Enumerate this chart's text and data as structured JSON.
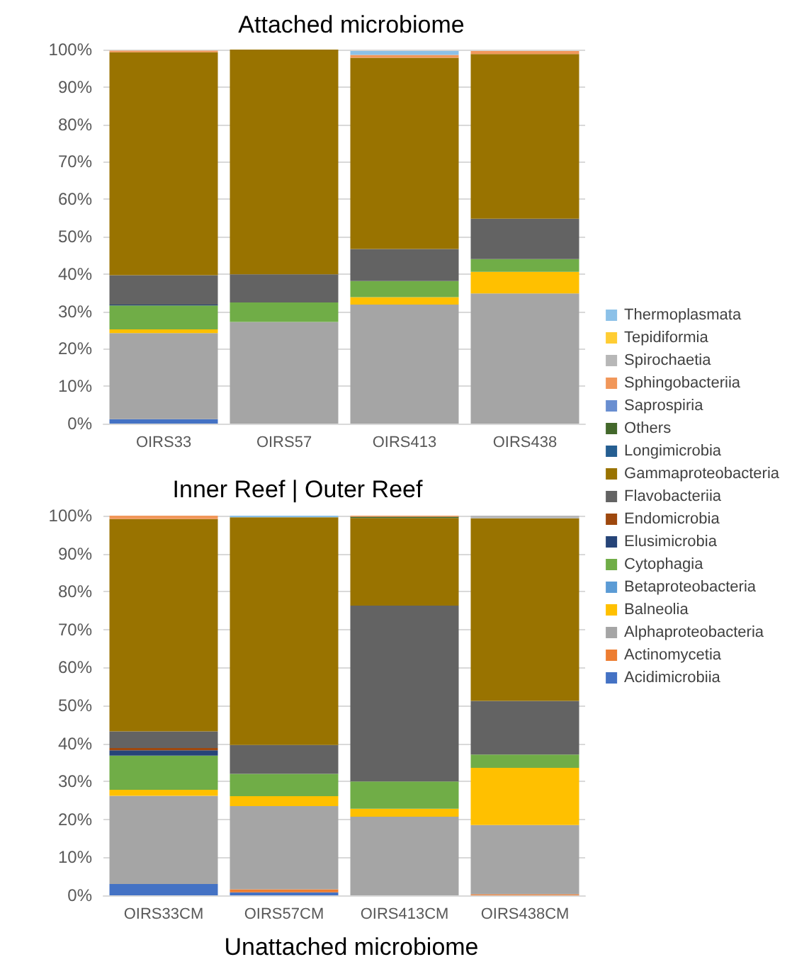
{
  "chart_data": [
    {
      "type": "bar",
      "title": "Attached microbiome",
      "stacked": true,
      "categories": [
        "OIRS33",
        "OIRS57",
        "OIRS413",
        "OIRS438"
      ],
      "ylim": [
        0,
        100
      ],
      "yticks": [
        {
          "value": 0,
          "label": "0%"
        },
        {
          "value": 10,
          "label": "10%"
        },
        {
          "value": 20,
          "label": "20%"
        },
        {
          "value": 30,
          "label": "30%"
        },
        {
          "value": 40,
          "label": "40%"
        },
        {
          "value": 50,
          "label": "50%"
        },
        {
          "value": 60,
          "label": "60%"
        },
        {
          "value": 70,
          "label": "70%"
        },
        {
          "value": 80,
          "label": "80%"
        },
        {
          "value": 90,
          "label": "90%"
        },
        {
          "value": 100,
          "label": "100%"
        }
      ],
      "grid": "y",
      "legend": "right",
      "series": [
        {
          "name": "Acidimicrobiia",
          "color": "#4472c4",
          "values": [
            1.2,
            0,
            0,
            0
          ]
        },
        {
          "name": "Actinomycetia",
          "color": "#ed7d31",
          "values": [
            0,
            0,
            0,
            0
          ]
        },
        {
          "name": "Alphaproteobacteria",
          "color": "#a5a5a5",
          "values": [
            23,
            27.2,
            31.8,
            34.8
          ]
        },
        {
          "name": "Balneolia",
          "color": "#ffc000",
          "values": [
            1,
            0,
            2,
            5.8
          ]
        },
        {
          "name": "Betaproteobacteria",
          "color": "#5b9bd5",
          "values": [
            0,
            0,
            0,
            0
          ]
        },
        {
          "name": "Cytophagia",
          "color": "#70ad47",
          "values": [
            6.4,
            5.2,
            4.3,
            3.4
          ]
        },
        {
          "name": "Elusimicrobia",
          "color": "#264478",
          "values": [
            0.2,
            0,
            0,
            0
          ]
        },
        {
          "name": "Endomicrobia",
          "color": "#9e480e",
          "values": [
            0,
            0,
            0,
            0
          ]
        },
        {
          "name": "Flavobacteriia",
          "color": "#636363",
          "values": [
            7.9,
            7.5,
            8.6,
            10.8
          ]
        },
        {
          "name": "Gammaproteobacteria",
          "color": "#997300",
          "values": [
            59.6,
            60.1,
            51.1,
            44
          ]
        },
        {
          "name": "Longimicrobia",
          "color": "#255e91",
          "values": [
            0,
            0,
            0,
            0
          ]
        },
        {
          "name": "Others",
          "color": "#43682b",
          "values": [
            0,
            0,
            0,
            0
          ]
        },
        {
          "name": "Saprospiria",
          "color": "#698ed0",
          "values": [
            0,
            0,
            0,
            0
          ]
        },
        {
          "name": "Sphingobacteriia",
          "color": "#f1975a",
          "values": [
            0.4,
            0,
            0.8,
            0.8
          ]
        },
        {
          "name": "Spirochaetia",
          "color": "#b7b7b7",
          "values": [
            0,
            0,
            null,
            null
          ]
        },
        {
          "name": "Tepidiformia",
          "color": "#ffcd33",
          "values": [
            0,
            0,
            0,
            0
          ]
        },
        {
          "name": "Thermoplasmata",
          "color": "#8cc1e8",
          "values": [
            0,
            0,
            1,
            0
          ]
        }
      ]
    },
    {
      "type": "bar",
      "title": "Unattached microbiome",
      "annotations": [
        "Inner Reef | Outer Reef"
      ],
      "stacked": true,
      "categories": [
        "OIRS33CM",
        "OIRS57CM",
        "OIRS413CM",
        "OIRS438CM"
      ],
      "ylim": [
        0,
        100
      ],
      "yticks": [
        {
          "value": 0,
          "label": "0%"
        },
        {
          "value": 10,
          "label": "10%"
        },
        {
          "value": 20,
          "label": "20%"
        },
        {
          "value": 30,
          "label": "30%"
        },
        {
          "value": 40,
          "label": "40%"
        },
        {
          "value": 50,
          "label": "50%"
        },
        {
          "value": 60,
          "label": "60%"
        },
        {
          "value": 70,
          "label": "70%"
        },
        {
          "value": 80,
          "label": "80%"
        },
        {
          "value": 90,
          "label": "90%"
        },
        {
          "value": 100,
          "label": "100%"
        }
      ],
      "grid": "y",
      "series": [
        {
          "color": "#4472c4",
          "values": [
            3,
            0.8,
            0,
            0
          ]
        },
        {
          "color": "#ed7d31",
          "values": [
            0,
            0.8,
            0,
            0.3
          ]
        },
        {
          "color": "#a5a5a5",
          "values": [
            23.2,
            21.9,
            20.7,
            18.2
          ]
        },
        {
          "color": "#ffc000",
          "values": [
            1.6,
            2.6,
            2.1,
            15.1
          ]
        },
        {
          "color": "#5b9bd5",
          "values": [
            0,
            0,
            0,
            0
          ]
        },
        {
          "color": "#70ad47",
          "values": [
            9,
            5.9,
            7.2,
            3.5
          ]
        },
        {
          "color": "#264478",
          "values": [
            1.4,
            0,
            0,
            0
          ]
        },
        {
          "color": "#9e480e",
          "values": [
            0.6,
            0,
            0,
            0
          ]
        },
        {
          "color": "#636363",
          "values": [
            4.4,
            7.6,
            46.3,
            14.1
          ]
        },
        {
          "color": "#997300",
          "values": [
            55.9,
            60,
            23.1,
            48.1
          ]
        },
        {
          "color": "#255e91",
          "values": [
            0,
            0,
            0,
            0
          ]
        },
        {
          "color": "#43682b",
          "values": [
            0,
            0,
            0.3,
            0
          ]
        },
        {
          "color": "#698ed0",
          "values": [
            0,
            0,
            0,
            0
          ]
        },
        {
          "color": "#f1975a",
          "values": [
            0.9,
            0,
            0.3,
            0
          ]
        },
        {
          "color": "#b7b7b7",
          "values": [
            0,
            0,
            0,
            0.7
          ]
        },
        {
          "color": "#ffcd33",
          "values": [
            0,
            0,
            0,
            0
          ]
        },
        {
          "color": "#8cc1e8",
          "values": [
            0,
            0.4,
            0,
            0
          ]
        }
      ]
    }
  ]
}
